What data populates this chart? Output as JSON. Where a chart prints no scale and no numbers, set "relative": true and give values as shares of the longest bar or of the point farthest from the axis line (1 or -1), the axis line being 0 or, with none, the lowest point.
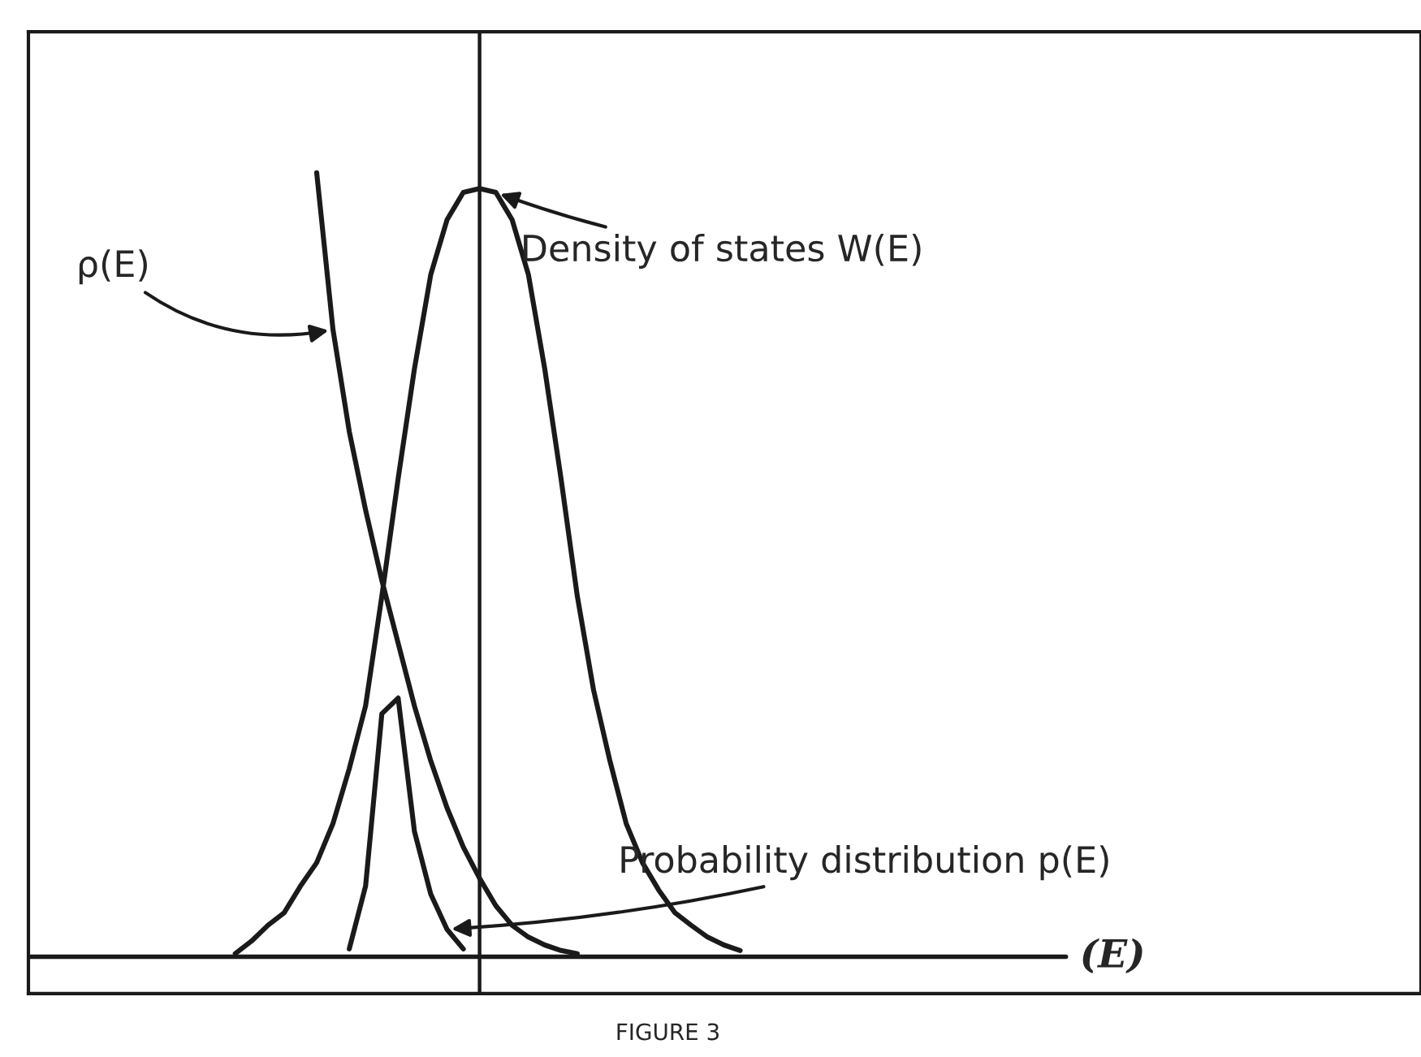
{
  "chart_data": {
    "type": "line",
    "relative": true,
    "marker": "none",
    "line_style": "solid",
    "categories": [
      null,
      null,
      null,
      null,
      null,
      null,
      null,
      null,
      null,
      null,
      null,
      null,
      null,
      null,
      null,
      null,
      null,
      null,
      null,
      null,
      null,
      null,
      null,
      null,
      null,
      null,
      null,
      null,
      null,
      null,
      null,
      null
    ],
    "series": [
      {
        "name": "ρ(E)",
        "color": "#1a1a1a",
        "values": [
          null,
          null,
          null,
          null,
          null,
          1.0,
          0.8,
          0.67,
          0.57,
          0.48,
          0.4,
          0.32,
          0.25,
          0.19,
          0.14,
          0.1,
          0.065,
          0.04,
          0.025,
          0.015,
          0.008,
          0.004,
          null,
          null,
          null,
          null,
          null,
          null,
          null,
          null,
          null,
          null
        ]
      },
      {
        "name": "Density of states W(E)",
        "color": "#1a1a1a",
        "values": [
          0.004,
          0.02,
          0.04,
          0.056,
          0.09,
          0.12,
          0.17,
          0.24,
          0.32,
          0.46,
          0.61,
          0.75,
          0.87,
          0.94,
          0.975,
          0.98,
          0.975,
          0.94,
          0.87,
          0.75,
          0.61,
          0.46,
          0.34,
          0.25,
          0.17,
          0.12,
          0.085,
          0.056,
          0.04,
          0.025,
          0.015,
          0.008
        ]
      },
      {
        "name": "Probability distribution p(E)",
        "color": "#1a1a1a",
        "values": [
          null,
          null,
          null,
          null,
          null,
          null,
          null,
          0.01,
          0.09,
          0.31,
          0.33,
          0.16,
          0.08,
          0.035,
          0.01,
          null,
          null,
          null,
          null,
          null,
          null,
          null,
          null,
          null,
          null,
          null,
          null,
          null,
          null,
          null,
          null,
          null
        ]
      }
    ],
    "annotations": [
      "(E)",
      "FIGURE 3"
    ]
  }
}
